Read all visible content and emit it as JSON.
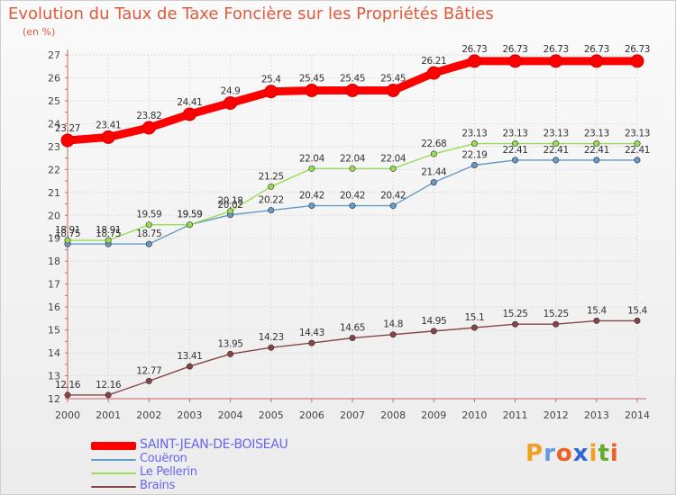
{
  "chart_data": {
    "type": "line",
    "title": "Evolution du Taux de Taxe Foncière sur les Propriétés Bâties",
    "unit_label": "(en %)",
    "x": [
      "2000",
      "2001",
      "2002",
      "2003",
      "2004",
      "2005",
      "2006",
      "2007",
      "2008",
      "2009",
      "2010",
      "2011",
      "2012",
      "2013",
      "2014"
    ],
    "ylim": [
      12,
      27
    ],
    "yticks": [
      12,
      13,
      14,
      15,
      16,
      17,
      18,
      19,
      20,
      21,
      22,
      23,
      24,
      25,
      26,
      27
    ],
    "series": [
      {
        "name": "SAINT-JEAN-DE-BOISEAU",
        "color": "#ff0000",
        "emphasis": true,
        "values": [
          23.27,
          23.41,
          23.82,
          24.41,
          24.9,
          25.4,
          25.45,
          25.45,
          25.45,
          26.21,
          26.73,
          26.73,
          26.73,
          26.73,
          26.73
        ],
        "labels": [
          "23.27",
          "23.41",
          "23.82",
          "24.41",
          "24.9",
          "25.4",
          "25.45",
          "25.45",
          "25.45",
          "26.21",
          "26.73",
          "26.73",
          "26.73",
          "26.73",
          "26.73"
        ]
      },
      {
        "name": "Couëron",
        "color": "#6699cc",
        "values": [
          18.75,
          18.75,
          18.75,
          19.59,
          20.02,
          20.22,
          20.42,
          20.42,
          20.42,
          21.44,
          22.19,
          22.41,
          22.41,
          22.41,
          22.41
        ],
        "labels": [
          "18.75",
          "18.75",
          "18.75",
          "19.59",
          "20.02",
          "20.22",
          "20.42",
          "20.42",
          "20.42",
          "21.44",
          "22.19",
          "22.41",
          "22.41",
          "22.41",
          "22.41"
        ]
      },
      {
        "name": "Le Pellerin",
        "color": "#99dd55",
        "values": [
          18.91,
          18.91,
          19.59,
          19.59,
          20.18,
          21.25,
          22.04,
          22.04,
          22.04,
          22.68,
          23.13,
          23.13,
          23.13,
          23.13,
          23.13
        ],
        "labels": [
          "18.91",
          "18.91",
          "19.59",
          "19.59",
          "20.18",
          "21.25",
          "22.04",
          "22.04",
          "22.04",
          "22.68",
          "23.13",
          "23.13",
          "23.13",
          "23.13",
          "23.13"
        ]
      },
      {
        "name": "Brains",
        "color": "#884444",
        "values": [
          12.16,
          12.16,
          12.77,
          13.41,
          13.95,
          14.23,
          14.43,
          14.65,
          14.8,
          14.95,
          15.1,
          15.25,
          15.25,
          15.4,
          15.4
        ],
        "labels": [
          "12.16",
          "12.16",
          "12.77",
          "13.41",
          "13.95",
          "14.23",
          "14.43",
          "14.65",
          "14.8",
          "14.95",
          "15.1",
          "15.25",
          "15.25",
          "15.4",
          "15.4"
        ]
      }
    ]
  },
  "logo": {
    "letters": [
      "P",
      "r",
      "o",
      "x",
      "i",
      "t",
      "i"
    ],
    "colors": [
      "#f0a020",
      "#6699dd",
      "#f06020",
      "#3366cc",
      "#f0a020",
      "#66aa33",
      "#f06020"
    ]
  }
}
